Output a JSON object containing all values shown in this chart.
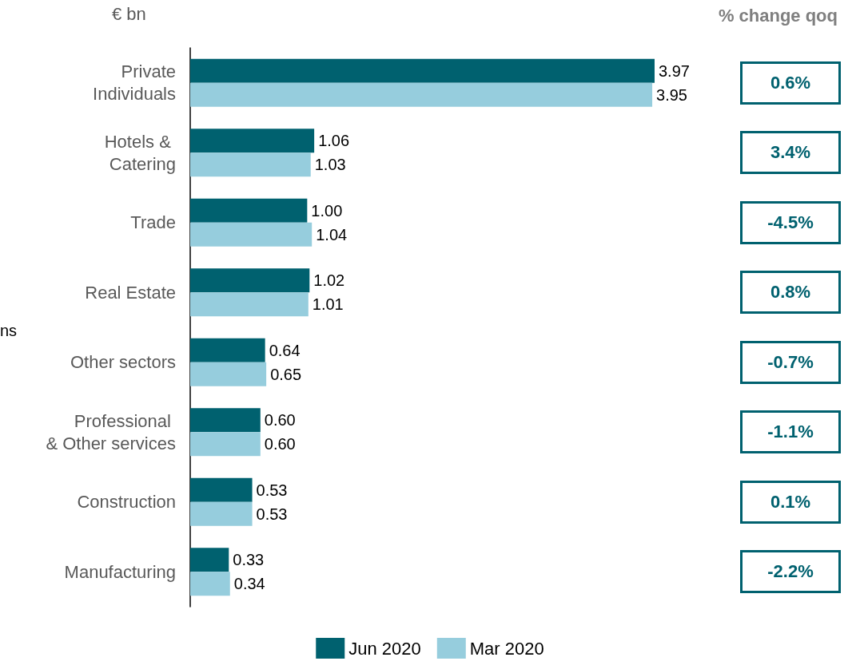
{
  "chart_data": {
    "type": "bar",
    "orientation": "horizontal",
    "xlabel": "€ bn",
    "categories": [
      "Private\nIndividuals",
      "Hotels & \nCatering",
      "Trade",
      "Real Estate",
      "Other sectors",
      "Professional \n& Other services",
      "Construction",
      "Manufacturing"
    ],
    "series": [
      {
        "name": "Jun 2020",
        "color": "#00616f",
        "values": [
          3.97,
          1.06,
          1.0,
          1.02,
          0.64,
          0.6,
          0.53,
          0.33
        ],
        "value_labels": [
          "3.97",
          "1.06",
          "1.00",
          "1.02",
          "0.64",
          "0.60",
          "0.53",
          "0.33"
        ]
      },
      {
        "name": "Mar 2020",
        "color": "#96cddd",
        "values": [
          3.95,
          1.03,
          1.04,
          1.01,
          0.65,
          0.6,
          0.53,
          0.34
        ],
        "value_labels": [
          "3.95",
          "1.03",
          "1.04",
          "1.01",
          "0.65",
          "0.60",
          "0.53",
          "0.34"
        ]
      }
    ],
    "legend": "bottom",
    "annotations": [
      "% change qoq",
      "ns",
      "0.6%",
      "3.4%",
      "-4.5%",
      "0.8%",
      "-0.7%",
      "-1.1%",
      "0.1%",
      "-2.2%"
    ]
  }
}
